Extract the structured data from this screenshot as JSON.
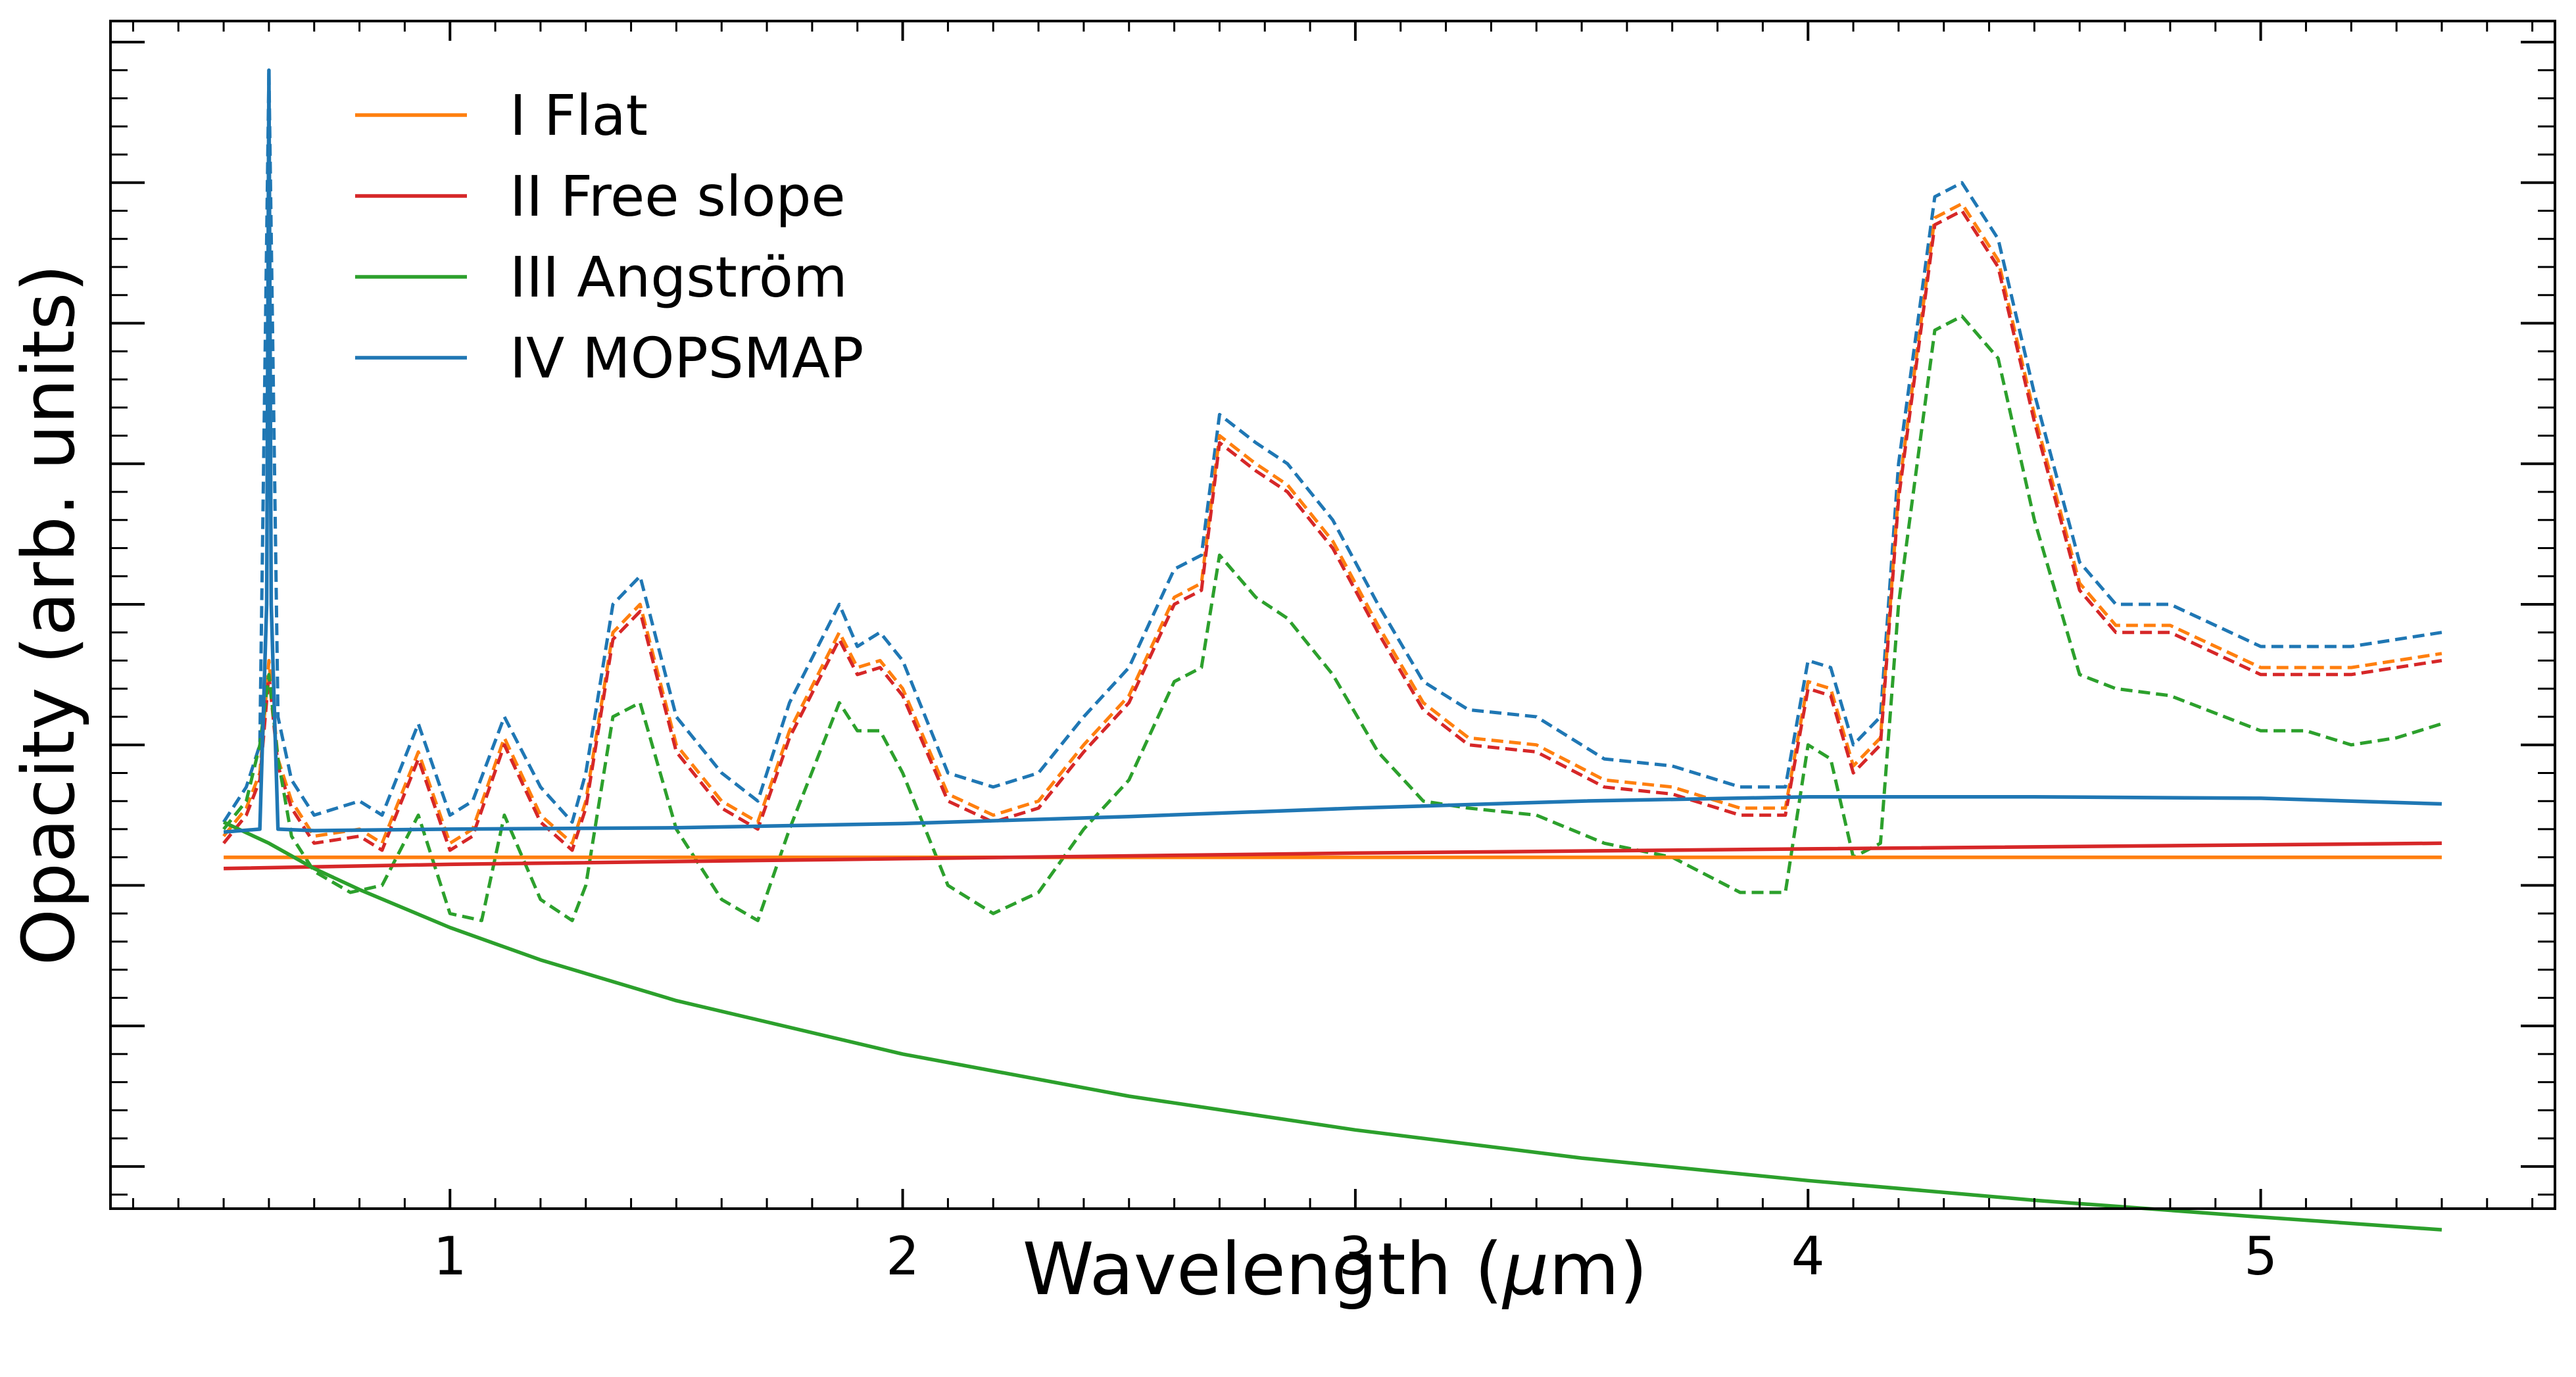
{
  "chart_data": {
    "type": "line",
    "title": "",
    "xlabel_prefix": "Wavelength (",
    "xlabel_unit_greek": "μ",
    "xlabel_suffix": "m)",
    "ylabel": "Opacity (arb. units)",
    "xlim": [
      0.25,
      5.65
    ],
    "ylim": [
      -0.3,
      8.15
    ],
    "x_ticks": [
      1,
      2,
      3,
      4,
      5
    ],
    "x_tick_labels": [
      "1",
      "2",
      "3",
      "4",
      "5"
    ],
    "y_ticks_shown": false,
    "grid": false,
    "legend_position": "top-left",
    "colors": {
      "flat": "#ff7f0e",
      "free_slope": "#d62728",
      "angstrom": "#2ca02c",
      "mopsmap": "#1f77b4"
    },
    "series": [
      {
        "name": "I Flat",
        "key": "flat",
        "style": "solid",
        "x": [
          0.5,
          5.4
        ],
        "y": [
          2.2,
          2.2
        ]
      },
      {
        "name": "II Free slope",
        "key": "free_slope",
        "style": "solid",
        "x": [
          0.5,
          1,
          2,
          3,
          4,
          5.4
        ],
        "y": [
          2.12,
          2.15,
          2.19,
          2.23,
          2.26,
          2.3
        ]
      },
      {
        "name": "III Angström",
        "key": "angstrom",
        "style": "solid",
        "x": [
          0.5,
          0.6,
          0.7,
          0.8,
          1.0,
          1.2,
          1.5,
          2.0,
          2.5,
          3.0,
          3.5,
          4.0,
          4.5,
          5.0,
          5.4
        ],
        "y": [
          2.45,
          2.3,
          2.12,
          1.97,
          1.7,
          1.47,
          1.18,
          0.8,
          0.5,
          0.26,
          0.06,
          -0.1,
          -0.24,
          -0.36,
          -0.45
        ]
      },
      {
        "name": "IV MOPSMAP",
        "key": "mopsmap",
        "style": "solid",
        "x": [
          0.5,
          0.58,
          0.595,
          0.6,
          0.605,
          0.62,
          0.7,
          1.0,
          1.5,
          2.0,
          2.5,
          3.0,
          3.5,
          4.0,
          4.5,
          5.0,
          5.4
        ],
        "y": [
          2.38,
          2.4,
          4.0,
          7.8,
          4.0,
          2.4,
          2.39,
          2.4,
          2.41,
          2.44,
          2.49,
          2.55,
          2.6,
          2.63,
          2.63,
          2.62,
          2.58
        ]
      }
    ],
    "dashed_series": [
      {
        "key": "mopsmap",
        "style": "dashed",
        "x": [
          0.5,
          0.55,
          0.58,
          0.6,
          0.62,
          0.65,
          0.7,
          0.8,
          0.85,
          0.93,
          1.0,
          1.05,
          1.12,
          1.2,
          1.27,
          1.3,
          1.36,
          1.42,
          1.5,
          1.6,
          1.68,
          1.75,
          1.86,
          1.9,
          1.95,
          2.0,
          2.1,
          2.2,
          2.3,
          2.4,
          2.5,
          2.6,
          2.66,
          2.7,
          2.78,
          2.85,
          2.95,
          3.05,
          3.15,
          3.25,
          3.4,
          3.55,
          3.7,
          3.85,
          3.95,
          4.0,
          4.05,
          4.1,
          4.16,
          4.2,
          4.28,
          4.34,
          4.42,
          4.5,
          4.6,
          4.68,
          4.8,
          5.0,
          5.1,
          5.2,
          5.3,
          5.4
        ],
        "y": [
          2.45,
          2.7,
          3.0,
          7.8,
          3.2,
          2.75,
          2.5,
          2.6,
          2.5,
          3.15,
          2.5,
          2.6,
          3.2,
          2.7,
          2.45,
          2.8,
          4.0,
          4.2,
          3.2,
          2.8,
          2.6,
          3.3,
          4.0,
          3.7,
          3.8,
          3.6,
          2.8,
          2.7,
          2.8,
          3.2,
          3.55,
          4.25,
          4.35,
          5.35,
          5.15,
          5.0,
          4.6,
          4.0,
          3.45,
          3.25,
          3.2,
          2.9,
          2.85,
          2.7,
          2.7,
          3.6,
          3.55,
          3.0,
          3.2,
          5.0,
          6.9,
          7.0,
          6.6,
          5.5,
          4.3,
          4.0,
          4.0,
          3.7,
          3.7,
          3.7,
          3.75,
          3.8
        ]
      },
      {
        "key": "flat",
        "style": "dashed",
        "x": [
          0.5,
          0.55,
          0.58,
          0.6,
          0.62,
          0.65,
          0.7,
          0.8,
          0.85,
          0.93,
          1.0,
          1.05,
          1.12,
          1.2,
          1.27,
          1.3,
          1.36,
          1.42,
          1.5,
          1.6,
          1.68,
          1.75,
          1.86,
          1.9,
          1.95,
          2.0,
          2.1,
          2.2,
          2.3,
          2.4,
          2.5,
          2.6,
          2.66,
          2.7,
          2.78,
          2.85,
          2.95,
          3.05,
          3.15,
          3.25,
          3.4,
          3.55,
          3.7,
          3.85,
          3.95,
          4.0,
          4.05,
          4.1,
          4.16,
          4.2,
          4.28,
          4.34,
          4.42,
          4.5,
          4.6,
          4.68,
          4.8,
          5.0,
          5.1,
          5.2,
          5.3,
          5.4
        ],
        "y": [
          2.35,
          2.55,
          2.8,
          3.6,
          2.9,
          2.6,
          2.35,
          2.4,
          2.3,
          2.95,
          2.3,
          2.4,
          3.05,
          2.5,
          2.3,
          2.6,
          3.8,
          4.0,
          3.0,
          2.6,
          2.45,
          3.1,
          3.8,
          3.55,
          3.6,
          3.4,
          2.65,
          2.5,
          2.6,
          3.0,
          3.35,
          4.05,
          4.15,
          5.2,
          5.0,
          4.85,
          4.45,
          3.85,
          3.3,
          3.05,
          3.0,
          2.75,
          2.7,
          2.55,
          2.55,
          3.45,
          3.4,
          2.85,
          3.05,
          4.8,
          6.75,
          6.85,
          6.45,
          5.35,
          4.15,
          3.85,
          3.85,
          3.55,
          3.55,
          3.55,
          3.6,
          3.65
        ]
      },
      {
        "key": "free_slope",
        "style": "dashed",
        "x": [
          0.5,
          0.55,
          0.58,
          0.6,
          0.62,
          0.65,
          0.7,
          0.8,
          0.85,
          0.93,
          1.0,
          1.05,
          1.12,
          1.2,
          1.27,
          1.3,
          1.36,
          1.42,
          1.5,
          1.6,
          1.68,
          1.75,
          1.86,
          1.9,
          1.95,
          2.0,
          2.1,
          2.2,
          2.3,
          2.4,
          2.5,
          2.6,
          2.66,
          2.7,
          2.78,
          2.85,
          2.95,
          3.05,
          3.15,
          3.25,
          3.4,
          3.55,
          3.7,
          3.85,
          3.95,
          4.0,
          4.05,
          4.1,
          4.16,
          4.2,
          4.28,
          4.34,
          4.42,
          4.5,
          4.6,
          4.68,
          4.8,
          5.0,
          5.1,
          5.2,
          5.3,
          5.4
        ],
        "y": [
          2.3,
          2.5,
          2.75,
          3.5,
          2.85,
          2.55,
          2.3,
          2.35,
          2.25,
          2.9,
          2.25,
          2.35,
          3.0,
          2.45,
          2.25,
          2.55,
          3.75,
          3.95,
          2.95,
          2.55,
          2.4,
          3.05,
          3.75,
          3.5,
          3.55,
          3.35,
          2.6,
          2.45,
          2.55,
          2.95,
          3.3,
          4.0,
          4.1,
          5.15,
          4.95,
          4.8,
          4.4,
          3.8,
          3.25,
          3.0,
          2.95,
          2.7,
          2.65,
          2.5,
          2.5,
          3.4,
          3.35,
          2.8,
          3.0,
          4.75,
          6.7,
          6.8,
          6.4,
          5.3,
          4.1,
          3.8,
          3.8,
          3.5,
          3.5,
          3.5,
          3.55,
          3.6
        ]
      },
      {
        "key": "angstrom",
        "style": "dashed",
        "x": [
          0.5,
          0.55,
          0.58,
          0.6,
          0.62,
          0.65,
          0.7,
          0.78,
          0.85,
          0.93,
          1.0,
          1.07,
          1.12,
          1.2,
          1.27,
          1.3,
          1.36,
          1.42,
          1.5,
          1.6,
          1.68,
          1.75,
          1.86,
          1.9,
          1.95,
          2.0,
          2.1,
          2.2,
          2.3,
          2.4,
          2.5,
          2.6,
          2.66,
          2.7,
          2.78,
          2.85,
          2.95,
          3.05,
          3.15,
          3.25,
          3.4,
          3.55,
          3.7,
          3.85,
          3.95,
          4.0,
          4.05,
          4.1,
          4.16,
          4.2,
          4.28,
          4.34,
          4.42,
          4.5,
          4.6,
          4.68,
          4.8,
          5.0,
          5.1,
          5.2,
          5.3,
          5.4
        ],
        "y": [
          2.4,
          2.6,
          3.0,
          3.5,
          2.9,
          2.35,
          2.1,
          1.95,
          2.0,
          2.5,
          1.8,
          1.75,
          2.5,
          1.9,
          1.75,
          2.0,
          3.2,
          3.3,
          2.4,
          1.9,
          1.75,
          2.4,
          3.3,
          3.1,
          3.1,
          2.8,
          2.0,
          1.8,
          1.95,
          2.4,
          2.75,
          3.45,
          3.55,
          4.35,
          4.05,
          3.9,
          3.5,
          2.95,
          2.6,
          2.55,
          2.5,
          2.3,
          2.2,
          1.95,
          1.95,
          3.0,
          2.9,
          2.2,
          2.3,
          4.0,
          5.95,
          6.05,
          5.75,
          4.6,
          3.5,
          3.4,
          3.35,
          3.1,
          3.1,
          3.0,
          3.05,
          3.15
        ]
      }
    ]
  }
}
